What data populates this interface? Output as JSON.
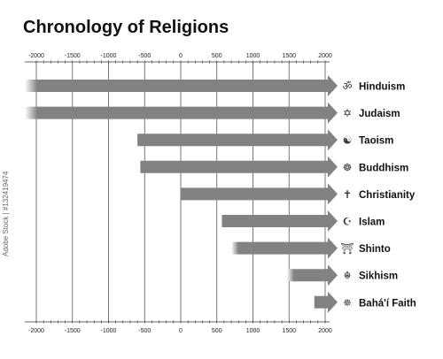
{
  "title": "Chronology of Religions",
  "side_id": "Adobe Stock | #132419474",
  "chart_data": {
    "type": "bar",
    "title": "Chronology of Religions",
    "xlim": [
      -2000,
      2000
    ],
    "x_ticks": [
      -2000,
      -1500,
      -1000,
      -500,
      0,
      500,
      1000,
      1500,
      2000
    ],
    "minor_tick_step": 100,
    "grid": "vertical lines at major ticks",
    "bar_color": "#808284",
    "fade_color": "#ffffff",
    "series": [
      {
        "name": "Hinduism",
        "start": -2000,
        "end": 2000,
        "faded_start": true,
        "symbol": "ॐ"
      },
      {
        "name": "Judaism",
        "start": -2000,
        "end": 2000,
        "faded_start": true,
        "symbol": "✡"
      },
      {
        "name": "Taoism",
        "start": -600,
        "end": 2000,
        "faded_start": false,
        "symbol": "☯"
      },
      {
        "name": "Buddhism",
        "start": -560,
        "end": 2000,
        "faded_start": false,
        "symbol": "☸"
      },
      {
        "name": "Christianity",
        "start": 0,
        "end": 2000,
        "faded_start": false,
        "symbol": "✝"
      },
      {
        "name": "Islam",
        "start": 570,
        "end": 2000,
        "faded_start": false,
        "symbol": "☪"
      },
      {
        "name": "Shinto",
        "start": 700,
        "end": 2000,
        "faded_start": true,
        "symbol": "⛩"
      },
      {
        "name": "Sikhism",
        "start": 1470,
        "end": 2000,
        "faded_start": true,
        "symbol": "☬"
      },
      {
        "name": "Bahá'í Faith",
        "start": 1850,
        "end": 2000,
        "faded_start": false,
        "symbol": "✵"
      }
    ]
  }
}
